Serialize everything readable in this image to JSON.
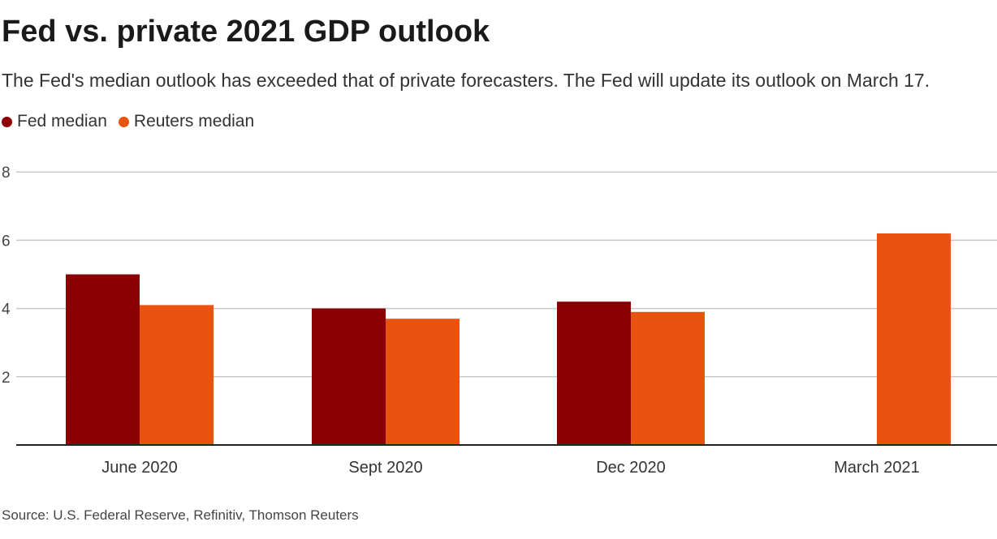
{
  "title": "Fed vs. private 2021 GDP outlook",
  "subtitle": "The Fed's median outlook has exceeded that of private forecasters. The Fed will update its outlook on March 17.",
  "source": "Source: U.S. Federal Reserve, Refinitiv, Thomson Reuters",
  "chart_data": {
    "type": "bar",
    "categories": [
      "June 2020",
      "Sept 2020",
      "Dec 2020",
      "March 2021"
    ],
    "series": [
      {
        "name": "Fed median",
        "color": "#8b0000",
        "values": [
          5.0,
          4.0,
          4.2,
          null
        ]
      },
      {
        "name": "Reuters median",
        "color": "#e8540f",
        "values": [
          4.1,
          3.7,
          3.9,
          6.2
        ]
      }
    ],
    "yticks": [
      2,
      4,
      6,
      8
    ],
    "ylim": [
      0,
      8
    ],
    "grid": true,
    "legend": "top-left"
  }
}
